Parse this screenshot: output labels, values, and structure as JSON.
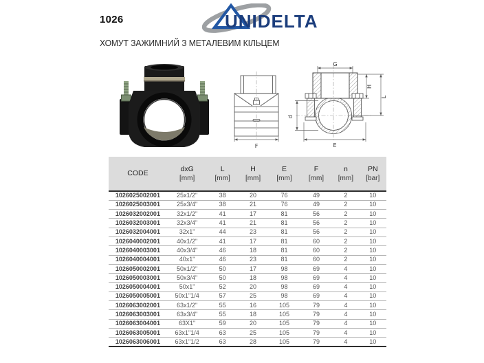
{
  "header": {
    "product_code": "1026",
    "brand": "UNIDELTA",
    "title": "ХОМУТ ЗАЖИМНИЙ З МЕТАЛЕВИМ КІЛЬЦЕМ"
  },
  "drawing": {
    "labels": {
      "G": "G",
      "H": "H",
      "L": "L",
      "d": "d",
      "E": "E",
      "F": "F"
    }
  },
  "table": {
    "columns": [
      {
        "label": "CODE",
        "unit": ""
      },
      {
        "label": "dxG",
        "unit": "[mm]"
      },
      {
        "label": "L",
        "unit": "[mm]"
      },
      {
        "label": "H",
        "unit": "[mm]"
      },
      {
        "label": "E",
        "unit": "[mm]"
      },
      {
        "label": "F",
        "unit": "[mm]"
      },
      {
        "label": "n",
        "unit": "[mm]"
      },
      {
        "label": "PN",
        "unit": "[bar]"
      }
    ],
    "rows": [
      [
        "1026025002001",
        "25x1/2\"",
        "38",
        "20",
        "76",
        "49",
        "2",
        "10"
      ],
      [
        "1026025003001",
        "25x3/4\"",
        "38",
        "21",
        "76",
        "49",
        "2",
        "10"
      ],
      [
        "1026032002001",
        "32x1/2\"",
        "41",
        "17",
        "81",
        "56",
        "2",
        "10"
      ],
      [
        "1026032003001",
        "32x3/4\"",
        "41",
        "21",
        "81",
        "56",
        "2",
        "10"
      ],
      [
        "1026032004001",
        "32x1\"",
        "44",
        "23",
        "81",
        "56",
        "2",
        "10"
      ],
      [
        "1026040002001",
        "40x1/2\"",
        "41",
        "17",
        "81",
        "60",
        "2",
        "10"
      ],
      [
        "1026040003001",
        "40x3/4\"",
        "46",
        "18",
        "81",
        "60",
        "2",
        "10"
      ],
      [
        "1026040004001",
        "40x1\"",
        "46",
        "23",
        "81",
        "60",
        "2",
        "10"
      ],
      [
        "1026050002001",
        "50x1/2\"",
        "50",
        "17",
        "98",
        "69",
        "4",
        "10"
      ],
      [
        "1026050003001",
        "50x3/4\"",
        "50",
        "18",
        "98",
        "69",
        "4",
        "10"
      ],
      [
        "1026050004001",
        "50x1\"",
        "52",
        "20",
        "98",
        "69",
        "4",
        "10"
      ],
      [
        "1026050005001",
        "50x1\"1/4",
        "57",
        "25",
        "98",
        "69",
        "4",
        "10"
      ],
      [
        "1026063002001",
        "63x1/2\"",
        "55",
        "16",
        "105",
        "79",
        "4",
        "10"
      ],
      [
        "1026063003001",
        "63x3/4\"",
        "55",
        "18",
        "105",
        "79",
        "4",
        "10"
      ],
      [
        "1026063004001",
        "63X1\"",
        "59",
        "20",
        "105",
        "79",
        "4",
        "10"
      ],
      [
        "1026063005001",
        "63x1\"1/4",
        "63",
        "25",
        "105",
        "79",
        "4",
        "10"
      ],
      [
        "1026063006001",
        "63x1\"1/2",
        "63",
        "28",
        "105",
        "79",
        "4",
        "10"
      ]
    ]
  },
  "colors": {
    "brand_navy": "#1b3d7c",
    "brand_blue": "#2257a4",
    "swoosh_gray": "#9da0a3",
    "header_bg": "#dcdcdc"
  }
}
